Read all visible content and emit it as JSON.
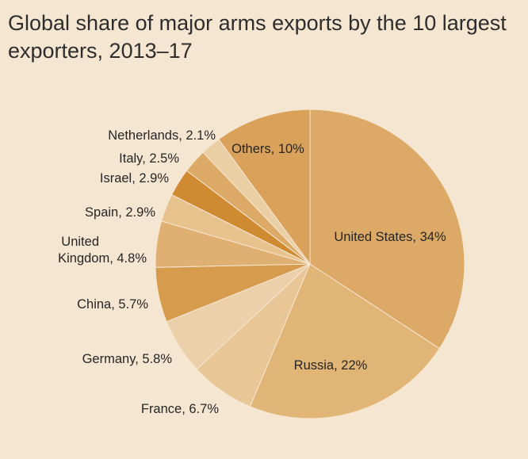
{
  "chart_data": {
    "type": "pie",
    "title": "Global share of major arms exports by the 10 largest exporters, 2013–17",
    "series": [
      {
        "label": "United States",
        "value": 34,
        "value_label": "34%",
        "color": "#dcaa66"
      },
      {
        "label": "Russia",
        "value": 22,
        "value_label": "22%",
        "color": "#e1b576"
      },
      {
        "label": "France",
        "value": 6.7,
        "value_label": "6.7%",
        "color": "#e8c696"
      },
      {
        "label": "Germany",
        "value": 5.8,
        "value_label": "5.8%",
        "color": "#ecd0aa"
      },
      {
        "label": "China",
        "value": 5.7,
        "value_label": "5.7%",
        "color": "#d79b4e"
      },
      {
        "label": "United Kingdom",
        "value": 4.8,
        "value_label": "4.8%",
        "color": "#dfb071"
      },
      {
        "label": "Spain",
        "value": 2.9,
        "value_label": "2.9%",
        "color": "#e7c28d"
      },
      {
        "label": "Israel",
        "value": 2.9,
        "value_label": "2.9%",
        "color": "#cf8a32"
      },
      {
        "label": "Italy",
        "value": 2.5,
        "value_label": "2.5%",
        "color": "#dcaa66"
      },
      {
        "label": "Netherlands",
        "value": 2.1,
        "value_label": "2.1%",
        "color": "#ebcfa4"
      },
      {
        "label": "Others",
        "value": 10,
        "value_label": "10%",
        "color": "#d9a15a"
      }
    ],
    "label_lines": {
      "United States": [
        "United States, 34%"
      ],
      "Russia": [
        "Russia, 22%"
      ],
      "France": [
        "France, 6.7%"
      ],
      "Germany": [
        "Germany, 5.8%"
      ],
      "China": [
        "China, 5.7%"
      ],
      "United Kingdom": [
        "United",
        "Kingdom, 4.8%"
      ],
      "Spain": [
        "Spain, 2.9%"
      ],
      "Israel": [
        "Israel, 2.9%"
      ],
      "Italy": [
        "Italy, 2.5%"
      ],
      "Netherlands": [
        "Netherlands, 2.1%"
      ],
      "Others": [
        "Others, 10%"
      ]
    }
  }
}
